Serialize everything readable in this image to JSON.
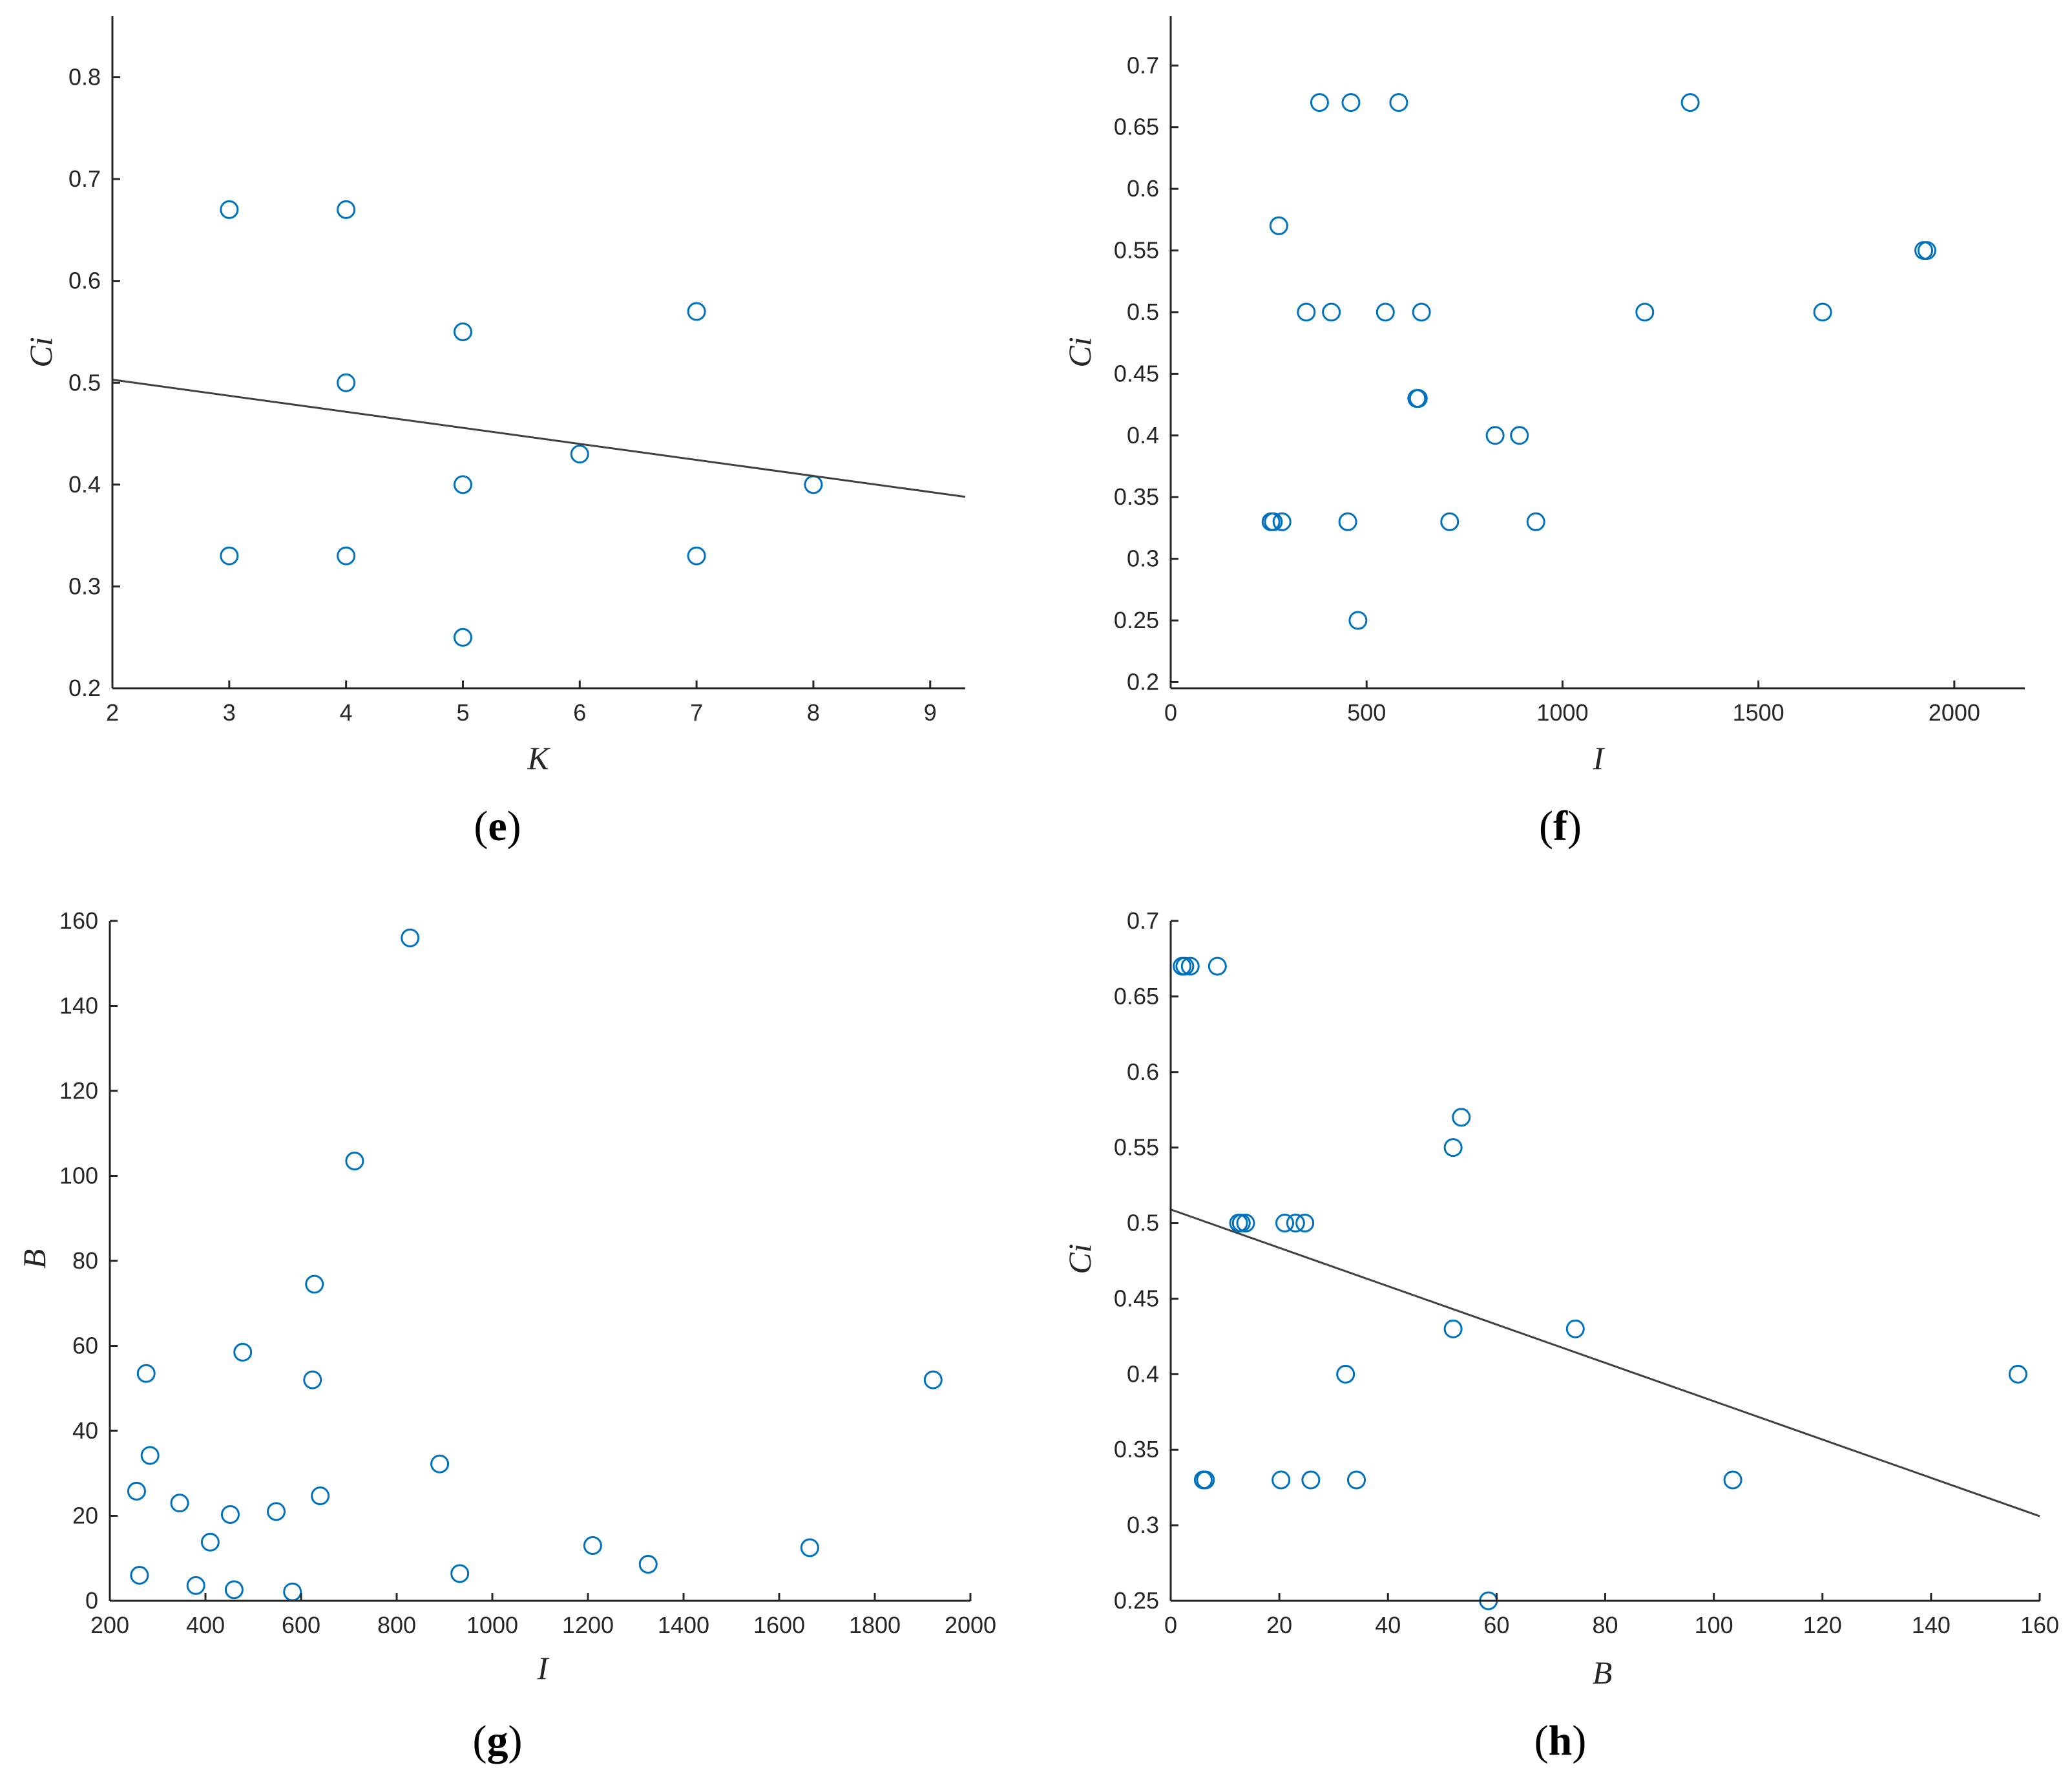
{
  "colors": {
    "marker": "#0072BD",
    "axis": "#262626",
    "fit_line": "#404040",
    "background": "#ffffff"
  },
  "chart_data": [
    {
      "id": "e",
      "type": "scatter",
      "panel_label": "e",
      "title": "",
      "xlabel": "K",
      "ylabel": "Ci",
      "xlim": [
        2,
        9.3
      ],
      "ylim": [
        0.2,
        0.86
      ],
      "xticks": [
        2,
        3,
        4,
        5,
        6,
        7,
        8,
        9
      ],
      "yticks": [
        0.2,
        0.3,
        0.4,
        0.5,
        0.6,
        0.7,
        0.8
      ],
      "xtick_labels": [
        "2",
        "3",
        "4",
        "5",
        "6",
        "7",
        "8",
        "9"
      ],
      "ytick_labels": [
        "0.2",
        "0.3",
        "0.4",
        "0.5",
        "0.6",
        "0.7",
        "0.8"
      ],
      "grid": false,
      "points": {
        "x": [
          3,
          4,
          3,
          4,
          4,
          5,
          5,
          5,
          6,
          7,
          7,
          8
        ],
        "y": [
          0.67,
          0.67,
          0.33,
          0.33,
          0.5,
          0.55,
          0.4,
          0.25,
          0.43,
          0.57,
          0.33,
          0.4
        ]
      },
      "fit_line": {
        "x": [
          2,
          9.3
        ],
        "y": [
          0.503,
          0.388
        ]
      }
    },
    {
      "id": "f",
      "type": "scatter",
      "panel_label": "f",
      "title": "",
      "xlabel": "I",
      "ylabel": "Ci",
      "xlim": [
        0,
        2180
      ],
      "ylim": [
        0.195,
        0.74
      ],
      "xticks": [
        0,
        500,
        1000,
        1500,
        2000
      ],
      "yticks": [
        0.2,
        0.25,
        0.3,
        0.35,
        0.4,
        0.45,
        0.5,
        0.55,
        0.6,
        0.65,
        0.7
      ],
      "xtick_labels": [
        "0",
        "500",
        "1000",
        "1500",
        "2000"
      ],
      "ytick_labels": [
        "0.2",
        "0.25",
        "0.3",
        "0.35",
        "0.4",
        "0.45",
        "0.5",
        "0.55",
        "0.6",
        "0.65",
        "0.7"
      ],
      "grid": false,
      "points": {
        "x": [
          380,
          460,
          582,
          1326,
          276,
          346,
          410,
          548,
          640,
          1210,
          1664,
          1930,
          1922,
          628,
          632,
          828,
          890,
          256,
          262,
          284,
          452,
          712,
          932,
          478
        ],
        "y": [
          0.67,
          0.67,
          0.67,
          0.67,
          0.57,
          0.5,
          0.5,
          0.5,
          0.5,
          0.5,
          0.5,
          0.55,
          0.55,
          0.43,
          0.43,
          0.4,
          0.4,
          0.33,
          0.33,
          0.33,
          0.33,
          0.33,
          0.33,
          0.25
        ]
      }
    },
    {
      "id": "g",
      "type": "scatter",
      "panel_label": "g",
      "title": "",
      "xlabel": "I",
      "ylabel": "B",
      "xlim": [
        200,
        2000
      ],
      "ylim": [
        0,
        160
      ],
      "xticks": [
        200,
        400,
        600,
        800,
        1000,
        1200,
        1400,
        1600,
        1800,
        2000
      ],
      "yticks": [
        0,
        20,
        40,
        60,
        80,
        100,
        120,
        140,
        160
      ],
      "xtick_labels": [
        "200",
        "400",
        "600",
        "800",
        "1000",
        "1200",
        "1400",
        "1600",
        "1800",
        "2000"
      ],
      "ytick_labels": [
        "0",
        "20",
        "40",
        "60",
        "80",
        "100",
        "120",
        "140",
        "160"
      ],
      "grid": false,
      "points": {
        "x": [
          828,
          712,
          628,
          478,
          276,
          624,
          1922,
          284,
          890,
          256,
          346,
          452,
          548,
          640,
          410,
          262,
          932,
          1210,
          1326,
          1664,
          380,
          460,
          582
        ],
        "y": [
          156,
          103.5,
          74.5,
          58.5,
          53.5,
          52,
          52,
          34.2,
          32.2,
          25.8,
          23,
          20.3,
          21,
          24.7,
          13.8,
          6,
          6.4,
          13,
          8.6,
          12.5,
          3.6,
          2.6,
          2.1
        ]
      }
    },
    {
      "id": "h",
      "type": "scatter",
      "panel_label": "h",
      "title": "",
      "xlabel": "B",
      "ylabel": "Ci",
      "xlim": [
        0,
        160
      ],
      "ylim": [
        0.25,
        0.7
      ],
      "xticks": [
        0,
        20,
        40,
        60,
        80,
        100,
        120,
        140,
        160
      ],
      "yticks": [
        0.25,
        0.3,
        0.35,
        0.4,
        0.45,
        0.5,
        0.55,
        0.6,
        0.65,
        0.7
      ],
      "xtick_labels": [
        "0",
        "20",
        "40",
        "60",
        "80",
        "100",
        "120",
        "140",
        "160"
      ],
      "ytick_labels": [
        "0.25",
        "0.3",
        "0.35",
        "0.4",
        "0.45",
        "0.5",
        "0.55",
        "0.6",
        "0.65",
        "0.7"
      ],
      "grid": false,
      "points": {
        "x": [
          2.1,
          2.6,
          3.6,
          8.6,
          53.5,
          52,
          12.5,
          13,
          13.8,
          21,
          23,
          24.7,
          52,
          74.5,
          32.2,
          156,
          6,
          6.4,
          20.3,
          25.8,
          34.2,
          103.5,
          58.5
        ],
        "y": [
          0.67,
          0.67,
          0.67,
          0.67,
          0.57,
          0.55,
          0.5,
          0.5,
          0.5,
          0.5,
          0.5,
          0.5,
          0.43,
          0.43,
          0.4,
          0.4,
          0.33,
          0.33,
          0.33,
          0.33,
          0.33,
          0.33,
          0.25
        ]
      },
      "fit_line": {
        "x": [
          0,
          160
        ],
        "y": [
          0.509,
          0.306
        ]
      }
    }
  ]
}
